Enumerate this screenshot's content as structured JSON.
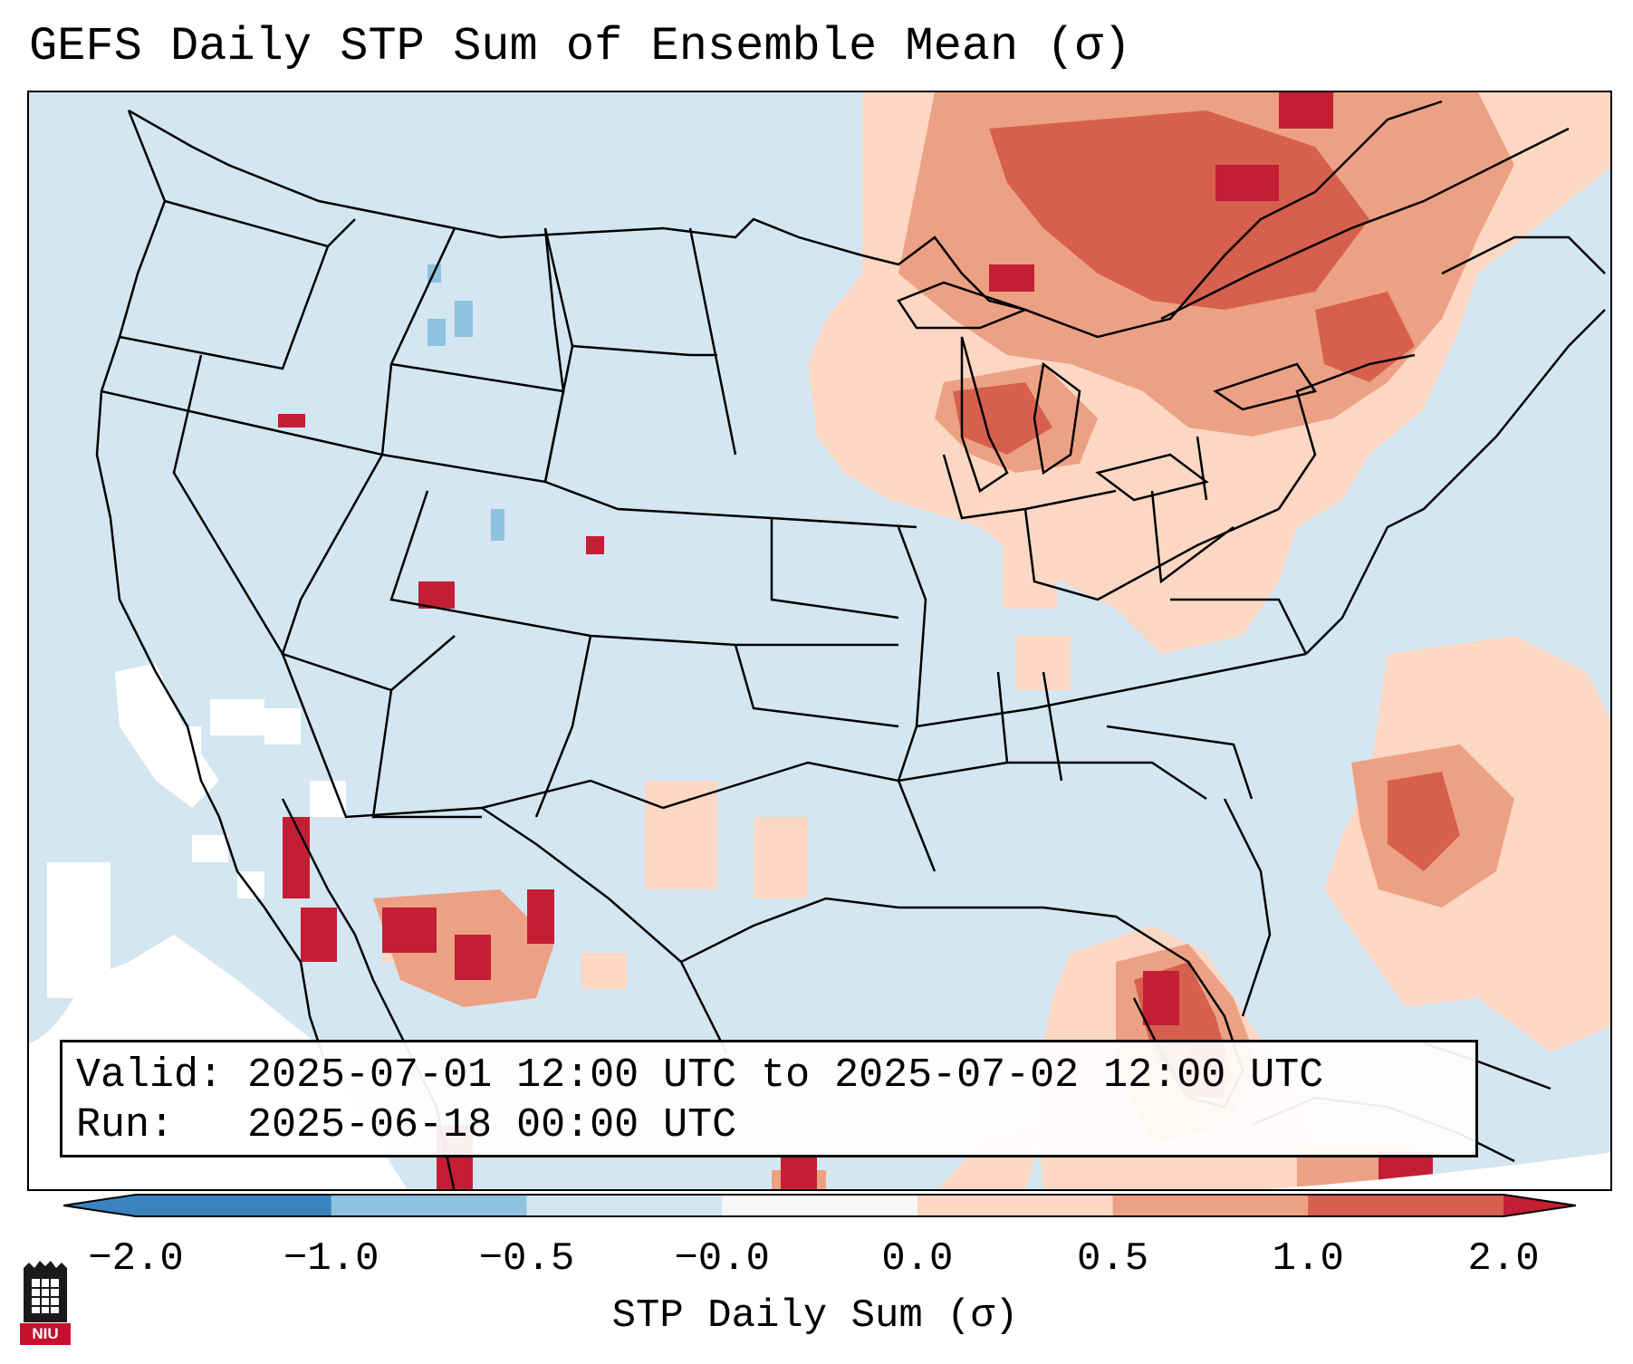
{
  "title": "GEFS Daily STP Sum of Ensemble Mean (σ)",
  "info": {
    "valid_line": "Valid: 2025-07-01 12:00 UTC to 2025-07-02 12:00 UTC",
    "run_line": "Run:   2025-06-18 00:00 UTC"
  },
  "colorbar": {
    "label": "STP Daily Sum (σ)",
    "ticks": [
      "−2.0",
      "−1.0",
      "−0.5",
      "−0.0",
      "0.0",
      "0.5",
      "1.0",
      "2.0"
    ],
    "colors": [
      "#3a83c0",
      "#8ec2e0",
      "#d3e6f2",
      "#f7f7f7",
      "#fcd7c3",
      "#eda184",
      "#d6604d",
      "#c41e35"
    ],
    "extend_low": "#3a83c0",
    "extend_high": "#c41e35"
  },
  "map_colors": {
    "background": "#d3e6f2",
    "white_zone": "#ffffff",
    "lines": "#000000"
  },
  "logo": {
    "text": "NIU",
    "color": "#c8102e"
  }
}
